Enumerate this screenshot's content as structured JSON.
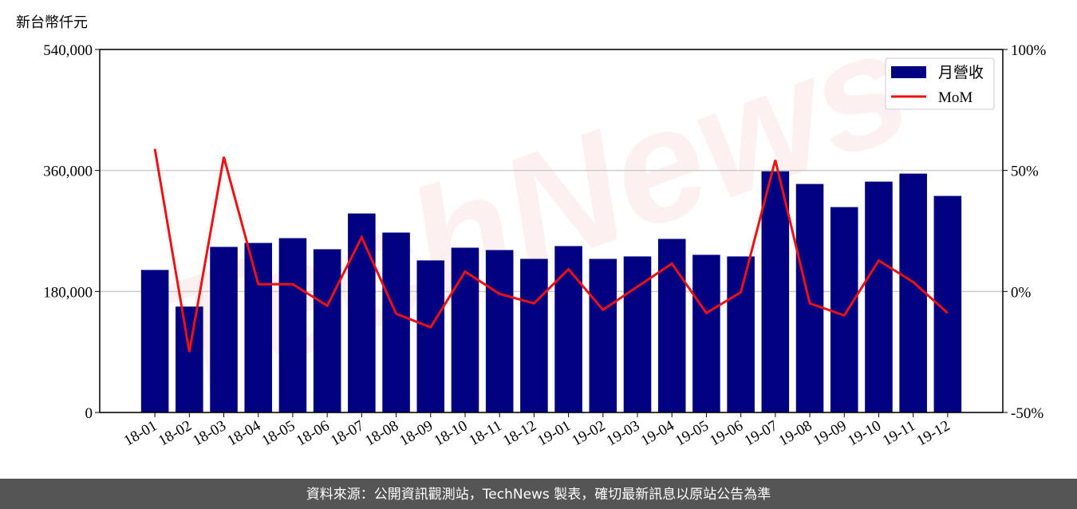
{
  "chart_data": {
    "type": "bar-line",
    "y_label": "新台幣仟元",
    "watermark": "TechNews",
    "categories": [
      "18-01",
      "18-02",
      "18-03",
      "18-04",
      "18-05",
      "18-06",
      "18-07",
      "18-08",
      "18-09",
      "18-10",
      "18-11",
      "18-12",
      "19-01",
      "19-02",
      "19-03",
      "19-04",
      "19-05",
      "19-06",
      "19-07",
      "19-08",
      "19-09",
      "19-10",
      "19-11",
      "19-12"
    ],
    "series": [
      {
        "name": "月營收",
        "type": "bar",
        "color": "#000080",
        "values": [
          212000,
          157500,
          246300,
          252200,
          259300,
          242800,
          296000,
          267600,
          226200,
          245100,
          241600,
          228500,
          247500,
          228500,
          232100,
          258200,
          234500,
          232100,
          358800,
          339900,
          305500,
          343400,
          355300,
          322100
        ]
      },
      {
        "name": "MoM",
        "type": "line",
        "axis": "y2",
        "color": "#ee1111",
        "values": [
          58.9,
          -25,
          55.6,
          3,
          3,
          -5.9,
          22.4,
          -9.2,
          -14.8,
          8.2,
          -1,
          -4.9,
          9.2,
          -7.6,
          2,
          11.5,
          -8.9,
          -0.3,
          54.3,
          -4.9,
          -9.9,
          12.8,
          3.9,
          -8.9
        ]
      }
    ],
    "ylim": [
      0,
      540000
    ],
    "yticks": [
      0,
      {
        "value": 180000,
        "label": "180,000"
      },
      {
        "value": 360000,
        "label": "360,000"
      },
      {
        "value": 540000,
        "label": "540,000"
      }
    ],
    "y2lim": [
      -50,
      100
    ],
    "y2ticks": [
      {
        "value": -50,
        "label": "-50%"
      },
      {
        "value": 0,
        "label": "0%"
      },
      {
        "value": 50,
        "label": "50%"
      },
      {
        "value": 100,
        "label": "100%"
      }
    ],
    "grid": true,
    "legend": "upper right"
  },
  "footer": "資料來源：公開資訊觀測站，TechNews 製表，確切最新訊息以原站公告為準"
}
